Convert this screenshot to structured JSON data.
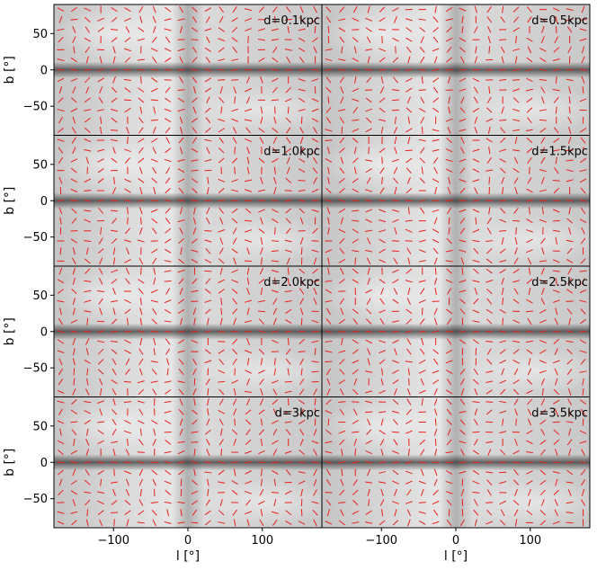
{
  "chart_data": {
    "type": "scatter",
    "description_kind": "polarization-vector map grid",
    "layout": {
      "rows": 4,
      "cols": 2,
      "sharex": true,
      "sharey": true
    },
    "xlabel": "l [°]",
    "ylabel": "b [°]",
    "xlim": [
      -180,
      180
    ],
    "ylim": [
      -90,
      90
    ],
    "xticks": [
      -100,
      0,
      100
    ],
    "xtick_labels": [
      "−100",
      "0",
      "100"
    ],
    "yticks": [
      50,
      0,
      -50
    ],
    "ytick_labels": [
      "50",
      "0",
      "−50"
    ],
    "grid": false,
    "vector_color": "#e8201a",
    "background_colormap": "grayscale",
    "panels": [
      {
        "label": "d=0.1kpc"
      },
      {
        "label": "d=0.5kpc"
      },
      {
        "label": "d=1.0kpc"
      },
      {
        "label": "d=1.5kpc"
      },
      {
        "label": "d=2.0kpc"
      },
      {
        "label": "d=2.5kpc"
      },
      {
        "label": "d=3kpc"
      },
      {
        "label": "d=3.5kpc"
      }
    ]
  }
}
